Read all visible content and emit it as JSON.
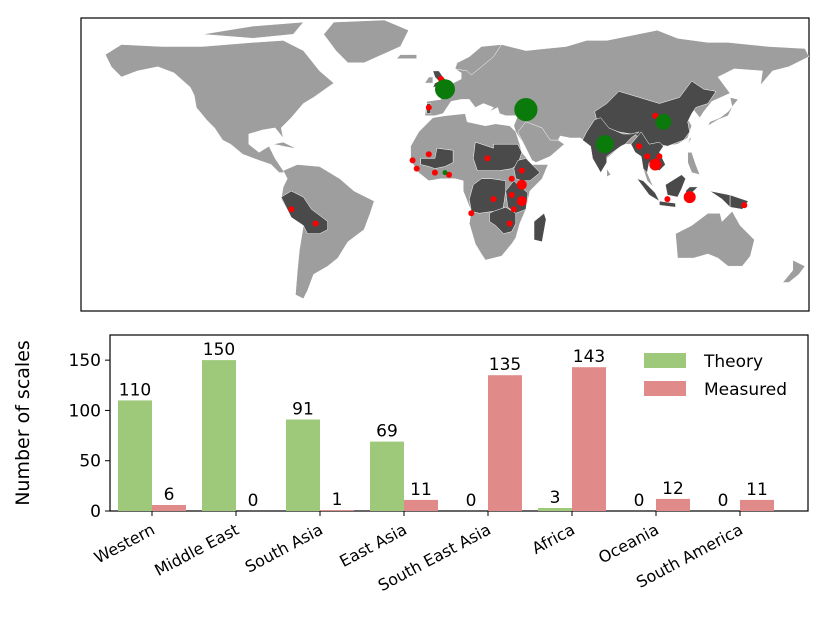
{
  "colors": {
    "theory": "#9ec97a",
    "measured": "#e08a8a",
    "land": "#9e9e9e",
    "highlight": "#4a4a4a",
    "theory_marker": "#0a7a0a",
    "measured_marker": "#ff0000",
    "ocean": "#ffffff"
  },
  "map": {
    "description_icon": "world-map",
    "theory_markers": [
      {
        "region": "Western",
        "lon": 0,
        "lat": 49,
        "value": 110
      },
      {
        "region": "Middle East",
        "lon": 40,
        "lat": 39,
        "value": 150
      },
      {
        "region": "South Asia",
        "lon": 79,
        "lat": 22,
        "value": 91
      },
      {
        "region": "East Asia",
        "lon": 108,
        "lat": 33,
        "value": 69
      },
      {
        "region": "Africa",
        "lon": 0,
        "lat": 8,
        "value": 3
      }
    ],
    "measured_markers": [
      {
        "lon": -2,
        "lat": 54
      },
      {
        "lon": -8,
        "lat": 40
      },
      {
        "lon": 104,
        "lat": 36
      },
      {
        "lon": -16,
        "lat": 14
      },
      {
        "lon": -14,
        "lat": 10
      },
      {
        "lon": -8,
        "lat": 17
      },
      {
        "lon": -5,
        "lat": 8
      },
      {
        "lon": 2,
        "lat": 7
      },
      {
        "lon": 21,
        "lat": 15
      },
      {
        "lon": 38,
        "lat": 9
      },
      {
        "lon": 33,
        "lat": 5
      },
      {
        "lon": 24,
        "lat": -5
      },
      {
        "lon": 33,
        "lat": -3
      },
      {
        "lon": 34,
        "lat": -10
      },
      {
        "lon": 32,
        "lat": -17
      },
      {
        "lon": 13,
        "lat": -12
      },
      {
        "lon": 96,
        "lat": 21
      },
      {
        "lon": 100,
        "lat": 16
      },
      {
        "lon": 104,
        "lat": 12
      },
      {
        "lon": 106,
        "lat": 16
      },
      {
        "lon": 110,
        "lat": -5
      },
      {
        "lon": 148,
        "lat": -8
      },
      {
        "lon": -76,
        "lat": -10
      },
      {
        "lon": -64,
        "lat": -17
      }
    ]
  },
  "chart_data": {
    "type": "bar",
    "categories": [
      "Western",
      "Middle East",
      "South Asia",
      "East Asia",
      "South East Asia",
      "Africa",
      "Oceania",
      "South America"
    ],
    "series": [
      {
        "name": "Theory",
        "values": [
          110,
          150,
          91,
          69,
          0,
          3,
          0,
          0
        ]
      },
      {
        "name": "Measured",
        "values": [
          6,
          0,
          1,
          11,
          135,
          143,
          12,
          11
        ]
      }
    ],
    "ylabel": "Number of scales",
    "xlabel": "",
    "ylim": [
      0,
      175
    ],
    "yticks": [
      0,
      50,
      100,
      150
    ],
    "legend": "top-right",
    "grid": false
  }
}
